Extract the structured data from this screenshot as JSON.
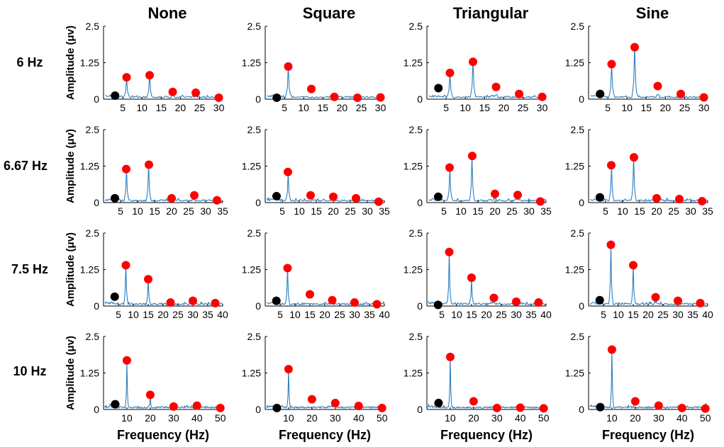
{
  "figure": {
    "column_titles": [
      "None",
      "Square",
      "Triangular",
      "Sine"
    ],
    "row_labels": [
      "6 Hz",
      "6.67 Hz",
      "7.5 Hz",
      "10 Hz"
    ],
    "ylabel": "Amplitude (μv)",
    "xlabel": "Frequency (Hz)",
    "y_ticks": [
      "0",
      "1.25",
      "2.5"
    ],
    "line_color": "#2f7fc1",
    "harmonic_marker_color": "#ff0000",
    "subharmonic_marker_color": "#000000"
  },
  "chart_data": [
    {
      "type": "line",
      "row": "6 Hz",
      "column": "None",
      "xlabel": "",
      "ylabel": "Amplitude (μv)",
      "xlim": [
        0,
        31
      ],
      "ylim": [
        0,
        2.5
      ],
      "x_ticks": [
        5,
        10,
        15,
        20,
        25,
        30
      ],
      "stim_hz": 6,
      "peaks": [
        [
          6,
          0.75
        ],
        [
          12,
          0.85
        ]
      ],
      "red": [
        [
          6,
          0.75
        ],
        [
          12,
          0.82
        ],
        [
          18,
          0.25
        ],
        [
          24,
          0.22
        ],
        [
          30,
          0.05
        ]
      ],
      "black": [
        [
          3,
          0.12
        ]
      ]
    },
    {
      "type": "line",
      "row": "6 Hz",
      "column": "Square",
      "xlabel": "",
      "ylabel": "",
      "xlim": [
        0,
        31
      ],
      "ylim": [
        0,
        2.5
      ],
      "x_ticks": [
        5,
        10,
        15,
        20,
        25,
        30
      ],
      "stim_hz": 6,
      "peaks": [
        [
          6,
          1.1
        ]
      ],
      "red": [
        [
          6,
          1.12
        ],
        [
          12,
          0.35
        ],
        [
          18,
          0.08
        ],
        [
          24,
          0.05
        ],
        [
          30,
          0.06
        ]
      ],
      "black": [
        [
          3,
          0.05
        ]
      ]
    },
    {
      "type": "line",
      "row": "6 Hz",
      "column": "Triangular",
      "xlabel": "",
      "ylabel": "",
      "xlim": [
        0,
        31
      ],
      "ylim": [
        0,
        2.5
      ],
      "x_ticks": [
        5,
        10,
        15,
        20,
        25,
        30
      ],
      "stim_hz": 6,
      "peaks": [
        [
          6,
          0.9
        ],
        [
          12,
          1.3
        ]
      ],
      "red": [
        [
          6,
          0.9
        ],
        [
          12,
          1.28
        ],
        [
          18,
          0.42
        ],
        [
          24,
          0.18
        ],
        [
          30,
          0.08
        ]
      ],
      "black": [
        [
          3,
          0.38
        ]
      ]
    },
    {
      "type": "line",
      "row": "6 Hz",
      "column": "Sine",
      "xlabel": "",
      "ylabel": "",
      "xlim": [
        0,
        31
      ],
      "ylim": [
        0,
        2.5
      ],
      "x_ticks": [
        5,
        10,
        15,
        20,
        25,
        30
      ],
      "stim_hz": 6,
      "peaks": [
        [
          6,
          1.2
        ],
        [
          12,
          1.8
        ]
      ],
      "red": [
        [
          6,
          1.2
        ],
        [
          12,
          1.78
        ],
        [
          18,
          0.45
        ],
        [
          24,
          0.18
        ],
        [
          30,
          0.06
        ]
      ],
      "black": [
        [
          3,
          0.18
        ]
      ]
    },
    {
      "type": "line",
      "row": "6.67 Hz",
      "column": "None",
      "xlabel": "",
      "ylabel": "Amplitude (μv)",
      "xlim": [
        0,
        35
      ],
      "ylim": [
        0,
        2.5
      ],
      "x_ticks": [
        5,
        10,
        15,
        20,
        25,
        30,
        35
      ],
      "stim_hz": 6.67,
      "peaks": [
        [
          6.67,
          1.15
        ],
        [
          13.33,
          1.3
        ]
      ],
      "red": [
        [
          6.67,
          1.15
        ],
        [
          13.33,
          1.3
        ],
        [
          20,
          0.15
        ],
        [
          26.67,
          0.25
        ],
        [
          33.33,
          0.08
        ]
      ],
      "black": [
        [
          3.33,
          0.15
        ]
      ]
    },
    {
      "type": "line",
      "row": "6.67 Hz",
      "column": "Square",
      "xlabel": "",
      "ylabel": "",
      "xlim": [
        0,
        35
      ],
      "ylim": [
        0,
        2.5
      ],
      "x_ticks": [
        5,
        10,
        15,
        20,
        25,
        30,
        35
      ],
      "stim_hz": 6.67,
      "peaks": [
        [
          6.67,
          1.0
        ]
      ],
      "red": [
        [
          6.67,
          1.05
        ],
        [
          13.33,
          0.25
        ],
        [
          20,
          0.2
        ],
        [
          26.67,
          0.15
        ],
        [
          33.33,
          0.03
        ]
      ],
      "black": [
        [
          3.33,
          0.22
        ]
      ]
    },
    {
      "type": "line",
      "row": "6.67 Hz",
      "column": "Triangular",
      "xlabel": "",
      "ylabel": "",
      "xlim": [
        0,
        35
      ],
      "ylim": [
        0,
        2.5
      ],
      "x_ticks": [
        5,
        10,
        15,
        20,
        25,
        30,
        35
      ],
      "stim_hz": 6.67,
      "peaks": [
        [
          6.67,
          1.2
        ],
        [
          13.33,
          1.6
        ]
      ],
      "red": [
        [
          6.67,
          1.2
        ],
        [
          13.33,
          1.6
        ],
        [
          20,
          0.3
        ],
        [
          26.67,
          0.26
        ],
        [
          33.33,
          0.04
        ]
      ],
      "black": [
        [
          3.33,
          0.2
        ]
      ]
    },
    {
      "type": "line",
      "row": "6.67 Hz",
      "column": "Sine",
      "xlabel": "",
      "ylabel": "",
      "xlim": [
        0,
        35
      ],
      "ylim": [
        0,
        2.5
      ],
      "x_ticks": [
        5,
        10,
        15,
        20,
        25,
        30,
        35
      ],
      "stim_hz": 6.67,
      "peaks": [
        [
          6.67,
          1.25
        ],
        [
          13.33,
          1.55
        ]
      ],
      "red": [
        [
          6.67,
          1.28
        ],
        [
          13.33,
          1.55
        ],
        [
          20,
          0.15
        ],
        [
          26.67,
          0.12
        ],
        [
          33.33,
          0.05
        ]
      ],
      "black": [
        [
          3.33,
          0.18
        ]
      ]
    },
    {
      "type": "line",
      "row": "7.5 Hz",
      "column": "None",
      "xlabel": "",
      "ylabel": "Amplitude (μv)",
      "xlim": [
        0,
        40
      ],
      "ylim": [
        0,
        2.5
      ],
      "x_ticks": [
        5,
        10,
        15,
        20,
        25,
        30,
        35,
        40
      ],
      "stim_hz": 7.5,
      "peaks": [
        [
          7.5,
          1.4
        ],
        [
          15,
          0.9
        ]
      ],
      "red": [
        [
          7.5,
          1.4
        ],
        [
          15,
          0.92
        ],
        [
          22.5,
          0.12
        ],
        [
          30,
          0.18
        ],
        [
          37.5,
          0.1
        ]
      ],
      "black": [
        [
          3.75,
          0.32
        ]
      ]
    },
    {
      "type": "line",
      "row": "7.5 Hz",
      "column": "Square",
      "xlabel": "",
      "ylabel": "",
      "xlim": [
        0,
        40
      ],
      "ylim": [
        0,
        2.5
      ],
      "x_ticks": [
        5,
        10,
        15,
        20,
        25,
        30,
        35,
        40
      ],
      "stim_hz": 7.5,
      "peaks": [
        [
          7.5,
          1.3
        ]
      ],
      "red": [
        [
          7.5,
          1.3
        ],
        [
          15,
          0.4
        ],
        [
          22.5,
          0.2
        ],
        [
          30,
          0.12
        ],
        [
          37.5,
          0.06
        ]
      ],
      "black": [
        [
          3.75,
          0.18
        ]
      ]
    },
    {
      "type": "line",
      "row": "7.5 Hz",
      "column": "Triangular",
      "xlabel": "",
      "ylabel": "",
      "xlim": [
        0,
        40
      ],
      "ylim": [
        0,
        2.5
      ],
      "x_ticks": [
        5,
        10,
        15,
        20,
        25,
        30,
        35,
        40
      ],
      "stim_hz": 7.5,
      "peaks": [
        [
          7.5,
          1.85
        ],
        [
          15,
          0.95
        ]
      ],
      "red": [
        [
          7.5,
          1.85
        ],
        [
          15,
          0.97
        ],
        [
          22.5,
          0.28
        ],
        [
          30,
          0.15
        ],
        [
          37.5,
          0.12
        ]
      ],
      "black": [
        [
          3.75,
          0.04
        ]
      ]
    },
    {
      "type": "line",
      "row": "7.5 Hz",
      "column": "Sine",
      "xlabel": "",
      "ylabel": "",
      "xlim": [
        0,
        40
      ],
      "ylim": [
        0,
        2.5
      ],
      "x_ticks": [
        5,
        10,
        15,
        20,
        25,
        30,
        35,
        40
      ],
      "stim_hz": 7.5,
      "peaks": [
        [
          7.5,
          2.1
        ],
        [
          15,
          1.4
        ]
      ],
      "red": [
        [
          7.5,
          2.1
        ],
        [
          15,
          1.4
        ],
        [
          22.5,
          0.3
        ],
        [
          30,
          0.18
        ],
        [
          37.5,
          0.1
        ]
      ],
      "black": [
        [
          3.75,
          0.2
        ]
      ]
    },
    {
      "type": "line",
      "row": "10 Hz",
      "column": "None",
      "xlabel": "Frequency (Hz)",
      "ylabel": "Amplitude (μv)",
      "xlim": [
        0,
        51
      ],
      "ylim": [
        0,
        2.5
      ],
      "x_ticks": [
        10,
        20,
        30,
        40,
        50
      ],
      "stim_hz": 10,
      "peaks": [
        [
          10,
          1.65
        ],
        [
          20,
          0.5
        ]
      ],
      "red": [
        [
          10,
          1.68
        ],
        [
          20,
          0.5
        ],
        [
          30,
          0.1
        ],
        [
          40,
          0.13
        ],
        [
          50,
          0.05
        ]
      ],
      "black": [
        [
          5,
          0.18
        ]
      ]
    },
    {
      "type": "line",
      "row": "10 Hz",
      "column": "Square",
      "xlabel": "Frequency (Hz)",
      "ylabel": "",
      "xlim": [
        0,
        51
      ],
      "ylim": [
        0,
        2.5
      ],
      "x_ticks": [
        10,
        20,
        30,
        40,
        50
      ],
      "stim_hz": 10,
      "peaks": [
        [
          10,
          1.35
        ]
      ],
      "red": [
        [
          10,
          1.38
        ],
        [
          20,
          0.35
        ],
        [
          30,
          0.22
        ],
        [
          40,
          0.12
        ],
        [
          50,
          0.05
        ]
      ],
      "black": [
        [
          5,
          0.05
        ]
      ]
    },
    {
      "type": "line",
      "row": "10 Hz",
      "column": "Triangular",
      "xlabel": "Frequency (Hz)",
      "ylabel": "",
      "xlim": [
        0,
        51
      ],
      "ylim": [
        0,
        2.5
      ],
      "x_ticks": [
        10,
        20,
        30,
        40,
        50
      ],
      "stim_hz": 10,
      "peaks": [
        [
          10,
          1.8
        ]
      ],
      "red": [
        [
          10,
          1.8
        ],
        [
          20,
          0.28
        ],
        [
          30,
          0.05
        ],
        [
          40,
          0.06
        ],
        [
          50,
          0.04
        ]
      ],
      "black": [
        [
          5,
          0.22
        ]
      ]
    },
    {
      "type": "line",
      "row": "10 Hz",
      "column": "Sine",
      "xlabel": "Frequency (Hz)",
      "ylabel": "",
      "xlim": [
        0,
        51
      ],
      "ylim": [
        0,
        2.5
      ],
      "x_ticks": [
        10,
        20,
        30,
        40,
        50
      ],
      "stim_hz": 10,
      "peaks": [
        [
          10,
          2.05
        ]
      ],
      "red": [
        [
          10,
          2.05
        ],
        [
          20,
          0.28
        ],
        [
          30,
          0.13
        ],
        [
          40,
          0.05
        ],
        [
          50,
          0.03
        ]
      ],
      "black": [
        [
          5,
          0.08
        ]
      ]
    }
  ]
}
